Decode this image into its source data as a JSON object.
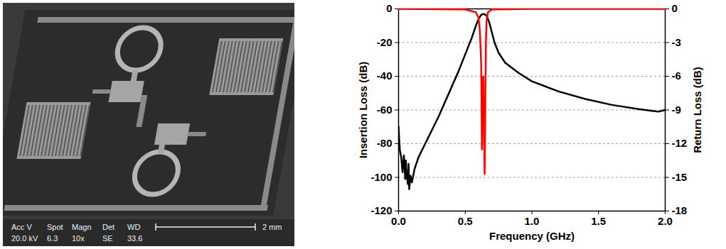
{
  "micrograph": {
    "info_labels": [
      "Acc V",
      "Spot",
      "Magn",
      "Det",
      "WD"
    ],
    "info_values": [
      "20.0 kV",
      "6.3",
      "10x",
      "SE",
      "33.6"
    ],
    "scale_bar": "2 mm"
  },
  "chart_data": {
    "type": "line",
    "xlabel": "Frequency (GHz)",
    "ylabel": "Insertion Loss (dB)",
    "y2label": "Return Loss (dB)",
    "xlim": [
      0,
      2
    ],
    "xticks": [
      {
        "value": 0,
        "label": "0.0"
      },
      {
        "value": 0.5,
        "label": "0.5"
      },
      {
        "value": 1,
        "label": "1.0"
      },
      {
        "value": 1.5,
        "label": "1.5"
      },
      {
        "value": 2,
        "label": "2.0"
      }
    ],
    "ylim": [
      -120,
      0
    ],
    "yticks": [
      -120,
      -100,
      -80,
      -60,
      -40,
      -20,
      0
    ],
    "y2lim": [
      -18,
      0
    ],
    "y2ticks": [
      -18,
      -15,
      -12,
      -9,
      -6,
      -3,
      0
    ],
    "grid": true,
    "series": [
      {
        "color": "#000000",
        "line_style": "solid",
        "x": [
          0,
          0.005,
          0.01,
          0.02,
          0.03,
          0.04,
          0.05,
          0.055,
          0.06,
          0.07,
          0.075,
          0.08,
          0.09,
          0.1,
          0.12,
          0.15,
          0.2,
          0.25,
          0.3,
          0.35,
          0.4,
          0.45,
          0.5,
          0.55,
          0.58,
          0.6,
          0.62,
          0.64,
          0.66,
          0.68,
          0.7,
          0.72,
          0.75,
          0.8,
          0.9,
          1.0,
          1.1,
          1.2,
          1.4,
          1.6,
          1.8,
          1.9,
          1.95,
          2.0
        ],
        "values": [
          -70,
          -78,
          -84,
          -88,
          -97,
          -87,
          -101,
          -90,
          -98,
          -104,
          -92,
          -107,
          -99,
          -103,
          -95,
          -88,
          -80,
          -72,
          -64,
          -55,
          -46,
          -37,
          -27,
          -17,
          -10,
          -6,
          -3.5,
          -3,
          -4,
          -8,
          -14,
          -20,
          -26,
          -32,
          -38,
          -43,
          -46,
          -49,
          -53.5,
          -57,
          -59.5,
          -60.5,
          -61,
          -60
        ]
      },
      {
        "color": "#ff0000",
        "line_style": "solid",
        "axis": "y2",
        "x": [
          0,
          0.5,
          0.58,
          0.6,
          0.61,
          0.62,
          0.625,
          0.63,
          0.635,
          0.64,
          0.645,
          0.65,
          0.655,
          0.66,
          0.67,
          0.7,
          1.0,
          2.0
        ],
        "values": [
          0,
          -0.05,
          -0.3,
          -0.8,
          -2,
          -5,
          -12.5,
          -8,
          -6,
          -10,
          -14.7,
          -9,
          -3,
          -1,
          -0.3,
          -0.05,
          0,
          0
        ]
      }
    ]
  }
}
